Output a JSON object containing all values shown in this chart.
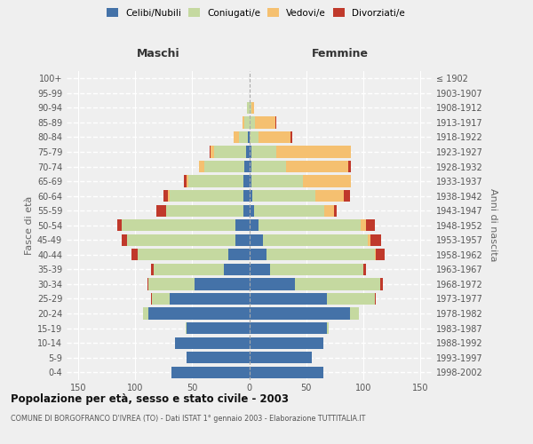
{
  "age_groups": [
    "0-4",
    "5-9",
    "10-14",
    "15-19",
    "20-24",
    "25-29",
    "30-34",
    "35-39",
    "40-44",
    "45-49",
    "50-54",
    "55-59",
    "60-64",
    "65-69",
    "70-74",
    "75-79",
    "80-84",
    "85-89",
    "90-94",
    "95-99",
    "100+"
  ],
  "birth_years": [
    "1998-2002",
    "1993-1997",
    "1988-1992",
    "1983-1987",
    "1978-1982",
    "1973-1977",
    "1968-1972",
    "1963-1967",
    "1958-1962",
    "1953-1957",
    "1948-1952",
    "1943-1947",
    "1938-1942",
    "1933-1937",
    "1928-1932",
    "1923-1927",
    "1918-1922",
    "1913-1917",
    "1908-1912",
    "1903-1907",
    "≤ 1902"
  ],
  "maschi": {
    "celibi": [
      68,
      55,
      65,
      55,
      88,
      70,
      48,
      22,
      18,
      12,
      12,
      5,
      5,
      5,
      4,
      3,
      1,
      0,
      0,
      0,
      0
    ],
    "coniugati": [
      0,
      0,
      0,
      1,
      5,
      15,
      40,
      62,
      80,
      95,
      100,
      68,
      65,
      48,
      35,
      28,
      8,
      4,
      2,
      0,
      0
    ],
    "vedovi": [
      0,
      0,
      0,
      0,
      0,
      0,
      0,
      0,
      0,
      0,
      0,
      0,
      1,
      2,
      5,
      3,
      5,
      2,
      0,
      0,
      0
    ],
    "divorziati": [
      0,
      0,
      0,
      0,
      0,
      1,
      1,
      2,
      5,
      5,
      4,
      8,
      4,
      2,
      0,
      1,
      0,
      0,
      0,
      0,
      0
    ]
  },
  "femmine": {
    "nubili": [
      65,
      55,
      65,
      68,
      88,
      68,
      40,
      18,
      15,
      12,
      8,
      4,
      3,
      2,
      2,
      2,
      0,
      0,
      0,
      0,
      0
    ],
    "coniugate": [
      0,
      0,
      0,
      2,
      8,
      42,
      75,
      82,
      95,
      92,
      90,
      62,
      55,
      45,
      30,
      22,
      8,
      5,
      2,
      0,
      0
    ],
    "vedove": [
      0,
      0,
      0,
      0,
      0,
      0,
      0,
      0,
      1,
      2,
      4,
      8,
      25,
      42,
      55,
      65,
      28,
      18,
      2,
      0,
      0
    ],
    "divorziate": [
      0,
      0,
      0,
      0,
      0,
      1,
      2,
      2,
      8,
      10,
      8,
      3,
      5,
      0,
      2,
      0,
      2,
      1,
      0,
      0,
      0
    ]
  },
  "colors": {
    "celibi_nubili": "#4472a8",
    "coniugati": "#c5d9a0",
    "vedovi": "#f5c070",
    "divorziati": "#c0392b"
  },
  "xlim": 160,
  "xticks": [
    -150,
    -100,
    -50,
    0,
    50,
    100,
    150
  ],
  "title": "Popolazione per età, sesso e stato civile - 2003",
  "subtitle": "COMUNE DI BORGOFRANCO D'IVREA (TO) - Dati ISTAT 1° gennaio 2003 - Elaborazione TUTTITALIA.IT",
  "ylabel_left": "Fasce di età",
  "ylabel_right": "Anni di nascita",
  "xlabel_maschi": "Maschi",
  "xlabel_femmine": "Femmine",
  "legend_labels": [
    "Celibi/Nubili",
    "Coniugati/e",
    "Vedovi/e",
    "Divorziati/e"
  ],
  "background_color": "#efefef"
}
